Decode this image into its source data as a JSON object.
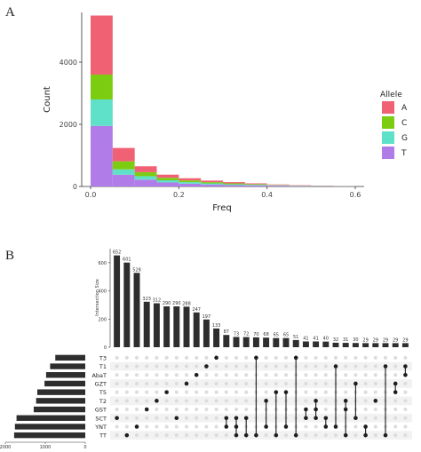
{
  "panels": {
    "a": "A",
    "b": "B"
  },
  "chart_data": [
    {
      "type": "bar",
      "stacked": true,
      "xlabel": "Freq",
      "ylabel": "Count",
      "xlim": [
        0,
        0.6
      ],
      "ylim": [
        0,
        5600
      ],
      "xticks": [
        "0.0",
        "0.2",
        "0.4",
        "0.6"
      ],
      "xtick_values": [
        0,
        0.2,
        0.4,
        0.6
      ],
      "yticks": [
        "0",
        "2000",
        "4000"
      ],
      "ytick_values": [
        0,
        2000,
        4000
      ],
      "bin_width": 0.05,
      "x": [
        0.025,
        0.075,
        0.125,
        0.175,
        0.225,
        0.275,
        0.325,
        0.375,
        0.425,
        0.475,
        0.525,
        0.575
      ],
      "legend_title": "Allele",
      "legend_position": "right",
      "series": [
        {
          "name": "T",
          "color": "#b07ce8",
          "values": [
            1950,
            380,
            220,
            130,
            90,
            65,
            45,
            35,
            25,
            15,
            10,
            5
          ]
        },
        {
          "name": "G",
          "color": "#5fe0c8",
          "values": [
            850,
            170,
            110,
            70,
            50,
            35,
            25,
            20,
            12,
            8,
            5,
            3
          ]
        },
        {
          "name": "C",
          "color": "#7ccd12",
          "values": [
            800,
            260,
            130,
            80,
            55,
            40,
            30,
            20,
            12,
            8,
            5,
            2
          ]
        },
        {
          "name": "A",
          "color": "#f16174",
          "values": [
            1900,
            430,
            190,
            100,
            70,
            50,
            40,
            25,
            15,
            10,
            6,
            3
          ]
        }
      ]
    },
    {
      "type": "upset",
      "ylabel": "Intersection Size",
      "ylim": [
        0,
        700
      ],
      "yticks": [
        "0",
        "200",
        "400",
        "600"
      ],
      "ytick_values": [
        0,
        200,
        400,
        600
      ],
      "intersections": [
        {
          "value": 652,
          "label": "652",
          "sets": [
            "SCT"
          ]
        },
        {
          "value": 601,
          "label": "601",
          "sets": [
            "TT"
          ]
        },
        {
          "value": 528,
          "label": "528",
          "sets": [
            "YNT"
          ]
        },
        {
          "value": 323,
          "label": "323",
          "sets": [
            "GST"
          ]
        },
        {
          "value": 312,
          "label": "312",
          "sets": [
            "T2"
          ]
        },
        {
          "value": 290,
          "label": "290",
          "sets": [
            "T5"
          ]
        },
        {
          "value": 290,
          "label": "290",
          "sets": [
            "SCT"
          ]
        },
        {
          "value": 288,
          "label": "288",
          "sets": [
            "GZT"
          ]
        },
        {
          "value": 247,
          "label": "247",
          "sets": [
            "AbaT"
          ]
        },
        {
          "value": 197,
          "label": "197",
          "sets": [
            "T1"
          ]
        },
        {
          "value": 133,
          "label": "133",
          "sets": [
            "T3"
          ]
        },
        {
          "value": 87,
          "label": "87",
          "sets": [
            "YNT",
            "SCT"
          ]
        },
        {
          "value": 73,
          "label": "73",
          "sets": [
            "TT",
            "YNT",
            "SCT"
          ]
        },
        {
          "value": 72,
          "label": "72",
          "sets": [
            "TT",
            "SCT"
          ]
        },
        {
          "value": 70,
          "label": "70",
          "sets": [
            "T3",
            "TT"
          ]
        },
        {
          "value": 68,
          "label": "68",
          "sets": [
            "YNT",
            "T2"
          ]
        },
        {
          "value": 65,
          "label": "65",
          "sets": [
            "TT",
            "T5"
          ]
        },
        {
          "value": 65,
          "label": "65",
          "sets": [
            "YNT",
            "T5"
          ]
        },
        {
          "value": 51,
          "label": "51",
          "sets": [
            "T3",
            "TT"
          ]
        },
        {
          "value": 41,
          "label": "41",
          "sets": [
            "GST",
            "SCT"
          ]
        },
        {
          "value": 41,
          "label": "41",
          "sets": [
            "T2",
            "GST",
            "SCT"
          ]
        },
        {
          "value": 40,
          "label": "40",
          "sets": [
            "SCT",
            "YNT"
          ]
        },
        {
          "value": 32,
          "label": "32",
          "sets": [
            "T1",
            "YNT"
          ]
        },
        {
          "value": 31,
          "label": "31",
          "sets": [
            "TT",
            "T2",
            "GST"
          ]
        },
        {
          "value": 30,
          "label": "30",
          "sets": [
            "GZT",
            "SCT"
          ]
        },
        {
          "value": 29,
          "label": "29",
          "sets": [
            "TT",
            "YNT"
          ]
        },
        {
          "value": 29,
          "label": "29",
          "sets": [
            "T2"
          ]
        },
        {
          "value": 29,
          "label": "29",
          "sets": [
            "TT",
            "T1"
          ]
        },
        {
          "value": 29,
          "label": "29",
          "sets": [
            "T5",
            "GZT"
          ]
        },
        {
          "value": 29,
          "label": "29",
          "sets": [
            "AbaT",
            "T1"
          ]
        }
      ],
      "sets": [
        {
          "name": "T3",
          "size": 750
        },
        {
          "name": "T1",
          "size": 880
        },
        {
          "name": "AbaT",
          "size": 980
        },
        {
          "name": "GZT",
          "size": 1020
        },
        {
          "name": "T5",
          "size": 1200
        },
        {
          "name": "T2",
          "size": 1230
        },
        {
          "name": "GST",
          "size": 1290
        },
        {
          "name": "SCT",
          "size": 1720
        },
        {
          "name": "YNT",
          "size": 1760
        },
        {
          "name": "TT",
          "size": 1780
        }
      ],
      "set_axis_ticks": [
        "2000",
        "1000",
        "0"
      ],
      "set_axis_values": [
        2000,
        1000,
        0
      ]
    }
  ]
}
